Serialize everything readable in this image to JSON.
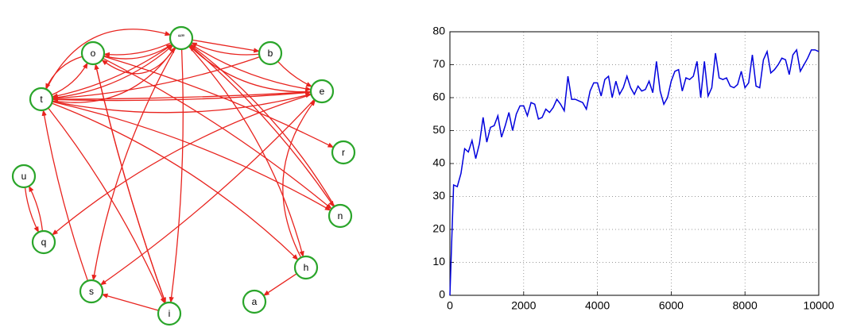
{
  "graph": {
    "nodes": [
      {
        "label": "“”"
      },
      {
        "label": "o"
      },
      {
        "label": "b"
      },
      {
        "label": "e"
      },
      {
        "label": "t"
      },
      {
        "label": "r"
      },
      {
        "label": "u"
      },
      {
        "label": "n"
      },
      {
        "label": "q"
      },
      {
        "label": "h"
      },
      {
        "label": "s"
      },
      {
        "label": "a"
      },
      {
        "label": "i"
      }
    ]
  },
  "chart_data": {
    "type": "line",
    "color": "#0000dd",
    "grid": true,
    "xlim": [
      0,
      10000
    ],
    "ylim": [
      0,
      80
    ],
    "xticks": [
      0,
      2000,
      4000,
      6000,
      8000,
      10000
    ],
    "yticks": [
      0,
      10,
      20,
      30,
      40,
      50,
      60,
      70,
      80
    ],
    "x": [
      0,
      100,
      200,
      300,
      400,
      500,
      600,
      700,
      800,
      900,
      1000,
      1100,
      1200,
      1300,
      1400,
      1500,
      1600,
      1700,
      1800,
      1900,
      2000,
      2100,
      2200,
      2300,
      2400,
      2500,
      2600,
      2700,
      2800,
      2900,
      3000,
      3100,
      3200,
      3300,
      3400,
      3500,
      3600,
      3700,
      3800,
      3900,
      4000,
      4100,
      4200,
      4300,
      4400,
      4500,
      4600,
      4700,
      4800,
      4900,
      5000,
      5100,
      5200,
      5300,
      5400,
      5500,
      5600,
      5700,
      5800,
      5900,
      6000,
      6100,
      6200,
      6300,
      6400,
      6500,
      6600,
      6700,
      6800,
      6900,
      7000,
      7100,
      7200,
      7300,
      7400,
      7500,
      7600,
      7700,
      7800,
      7900,
      8000,
      8100,
      8200,
      8300,
      8400,
      8500,
      8600,
      8700,
      8800,
      8900,
      9000,
      9100,
      9200,
      9300,
      9400,
      9500,
      9600,
      9700,
      9800,
      9900,
      10000
    ],
    "values": [
      0,
      33.5,
      33,
      37,
      44.5,
      43.5,
      47,
      41.5,
      46,
      54,
      46.5,
      51,
      51.5,
      54.5,
      48,
      51.5,
      55.5,
      50,
      55,
      57.5,
      57.5,
      54.5,
      58.5,
      58,
      53.5,
      54,
      56.5,
      55.5,
      57,
      59.5,
      58,
      56,
      66.5,
      59.5,
      59.5,
      59,
      58.5,
      56.5,
      62,
      64.5,
      64.5,
      60.5,
      65.5,
      66.5,
      60,
      65,
      61,
      63,
      66.5,
      63,
      61,
      63.5,
      62,
      62.5,
      65,
      61.5,
      71,
      62,
      58,
      60,
      65,
      68,
      68.5,
      62,
      66,
      65.5,
      66.5,
      71,
      60,
      71,
      60.5,
      63,
      73.5,
      66,
      65.5,
      66,
      63.5,
      63,
      64,
      68,
      63,
      64.5,
      73,
      63.5,
      63,
      71.5,
      74,
      67.5,
      68.5,
      70,
      72,
      71.5,
      67,
      73,
      74.5,
      68,
      70,
      72,
      74.5,
      74.5,
      74
    ]
  }
}
